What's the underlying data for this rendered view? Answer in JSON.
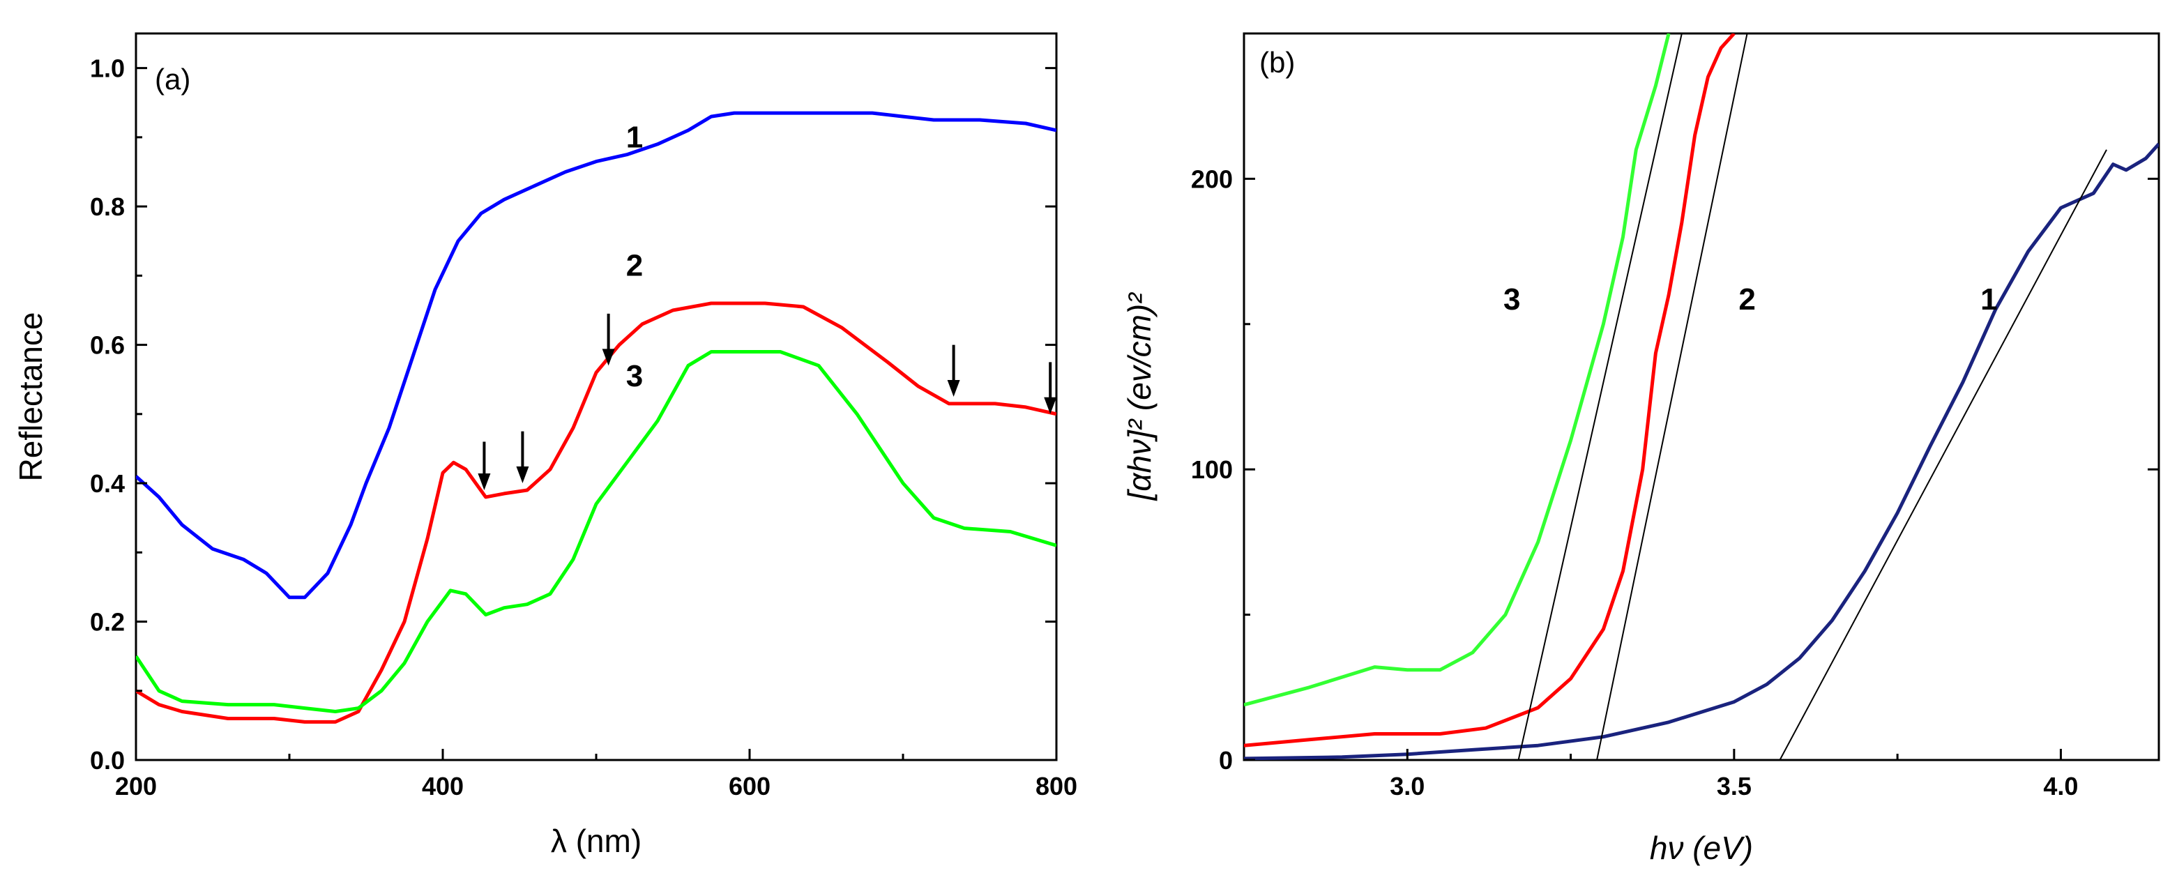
{
  "chart_data": [
    {
      "type": "line",
      "panel_label": "(a)",
      "xlabel": "λ (nm)",
      "ylabel": "Reflectance",
      "xlim": [
        200,
        800
      ],
      "ylim": [
        0,
        1.05
      ],
      "x_ticks": [
        200,
        400,
        600,
        800
      ],
      "x_tick_labels": [
        "200",
        "400",
        "600",
        "800"
      ],
      "y_ticks": [
        0,
        0.2,
        0.4,
        0.6,
        0.8,
        1.0
      ],
      "y_tick_labels": [
        "0.0",
        "0.2",
        "0.4",
        "0.6",
        "0.8",
        "1.0"
      ],
      "grid": false,
      "series": [
        {
          "name": "1",
          "color": "#0000ff",
          "points": [
            [
              200,
              0.41
            ],
            [
              215,
              0.38
            ],
            [
              230,
              0.34
            ],
            [
              250,
              0.305
            ],
            [
              270,
              0.29
            ],
            [
              285,
              0.27
            ],
            [
              300,
              0.235
            ],
            [
              310,
              0.235
            ],
            [
              325,
              0.27
            ],
            [
              340,
              0.34
            ],
            [
              350,
              0.4
            ],
            [
              365,
              0.48
            ],
            [
              380,
              0.58
            ],
            [
              395,
              0.68
            ],
            [
              410,
              0.75
            ],
            [
              425,
              0.79
            ],
            [
              440,
              0.81
            ],
            [
              460,
              0.83
            ],
            [
              480,
              0.85
            ],
            [
              500,
              0.865
            ],
            [
              520,
              0.875
            ],
            [
              540,
              0.89
            ],
            [
              560,
              0.91
            ],
            [
              575,
              0.93
            ],
            [
              590,
              0.935
            ],
            [
              620,
              0.935
            ],
            [
              650,
              0.935
            ],
            [
              680,
              0.935
            ],
            [
              700,
              0.93
            ],
            [
              720,
              0.925
            ],
            [
              750,
              0.925
            ],
            [
              780,
              0.92
            ],
            [
              800,
              0.91
            ]
          ],
          "label_at": [
            525,
            0.885
          ]
        },
        {
          "name": "2",
          "color": "#ff0000",
          "points": [
            [
              200,
              0.1
            ],
            [
              215,
              0.08
            ],
            [
              230,
              0.07
            ],
            [
              260,
              0.06
            ],
            [
              290,
              0.06
            ],
            [
              310,
              0.055
            ],
            [
              330,
              0.055
            ],
            [
              345,
              0.07
            ],
            [
              360,
              0.13
            ],
            [
              375,
              0.2
            ],
            [
              390,
              0.32
            ],
            [
              400,
              0.415
            ],
            [
              407,
              0.43
            ],
            [
              415,
              0.42
            ],
            [
              428,
              0.38
            ],
            [
              440,
              0.385
            ],
            [
              455,
              0.39
            ],
            [
              470,
              0.42
            ],
            [
              485,
              0.48
            ],
            [
              500,
              0.56
            ],
            [
              515,
              0.6
            ],
            [
              530,
              0.63
            ],
            [
              550,
              0.65
            ],
            [
              575,
              0.66
            ],
            [
              610,
              0.66
            ],
            [
              635,
              0.655
            ],
            [
              660,
              0.625
            ],
            [
              690,
              0.575
            ],
            [
              710,
              0.54
            ],
            [
              730,
              0.515
            ],
            [
              760,
              0.515
            ],
            [
              780,
              0.51
            ],
            [
              800,
              0.5
            ]
          ],
          "label_at": [
            525,
            0.7
          ]
        },
        {
          "name": "3",
          "color": "#00ff00",
          "points": [
            [
              200,
              0.15
            ],
            [
              215,
              0.1
            ],
            [
              230,
              0.085
            ],
            [
              260,
              0.08
            ],
            [
              290,
              0.08
            ],
            [
              310,
              0.075
            ],
            [
              330,
              0.07
            ],
            [
              345,
              0.075
            ],
            [
              360,
              0.1
            ],
            [
              375,
              0.14
            ],
            [
              390,
              0.2
            ],
            [
              405,
              0.245
            ],
            [
              415,
              0.24
            ],
            [
              428,
              0.21
            ],
            [
              440,
              0.22
            ],
            [
              455,
              0.225
            ],
            [
              470,
              0.24
            ],
            [
              485,
              0.29
            ],
            [
              500,
              0.37
            ],
            [
              520,
              0.43
            ],
            [
              540,
              0.49
            ],
            [
              560,
              0.57
            ],
            [
              575,
              0.59
            ],
            [
              620,
              0.59
            ],
            [
              645,
              0.57
            ],
            [
              670,
              0.5
            ],
            [
              700,
              0.4
            ],
            [
              720,
              0.35
            ],
            [
              740,
              0.335
            ],
            [
              770,
              0.33
            ],
            [
              800,
              0.31
            ]
          ],
          "label_at": [
            525,
            0.54
          ]
        }
      ],
      "annotations": [
        {
          "type": "arrow",
          "x": 427,
          "y_tip": 0.39,
          "y_tail": 0.46
        },
        {
          "type": "arrow",
          "x": 452,
          "y_tip": 0.4,
          "y_tail": 0.475
        },
        {
          "type": "arrow",
          "x": 508,
          "y_tip": 0.57,
          "y_tail": 0.645
        },
        {
          "type": "arrow",
          "x": 733,
          "y_tip": 0.525,
          "y_tail": 0.6
        },
        {
          "type": "arrow",
          "x": 796,
          "y_tip": 0.5,
          "y_tail": 0.575
        }
      ]
    },
    {
      "type": "line",
      "panel_label": "(b)",
      "xlabel": "hν (eV)",
      "ylabel": "[αhν]² (ev/cm)²",
      "xlim": [
        2.75,
        4.15
      ],
      "ylim": [
        0,
        250
      ],
      "x_ticks": [
        3.0,
        3.5,
        4.0
      ],
      "x_tick_labels": [
        "3.0",
        "3.5",
        "4.0"
      ],
      "y_ticks": [
        0,
        100,
        200
      ],
      "y_tick_labels": [
        "0",
        "100",
        "200"
      ],
      "grid": false,
      "series": [
        {
          "name": "1",
          "color": "#1a237e",
          "points": [
            [
              2.75,
              0.5
            ],
            [
              2.9,
              1
            ],
            [
              3.0,
              2
            ],
            [
              3.1,
              3.5
            ],
            [
              3.2,
              5
            ],
            [
              3.3,
              8
            ],
            [
              3.4,
              13
            ],
            [
              3.5,
              20
            ],
            [
              3.55,
              26
            ],
            [
              3.6,
              35
            ],
            [
              3.65,
              48
            ],
            [
              3.7,
              65
            ],
            [
              3.75,
              85
            ],
            [
              3.8,
              108
            ],
            [
              3.85,
              130
            ],
            [
              3.9,
              155
            ],
            [
              3.95,
              175
            ],
            [
              4.0,
              190
            ],
            [
              4.05,
              195
            ],
            [
              4.08,
              205
            ],
            [
              4.1,
              203
            ],
            [
              4.13,
              207
            ],
            [
              4.15,
              212
            ]
          ],
          "label_at": [
            3.89,
            155
          ],
          "tangent": [
            [
              3.57,
              0
            ],
            [
              4.07,
              210
            ]
          ]
        },
        {
          "name": "2",
          "color": "#ff0000",
          "points": [
            [
              2.75,
              5
            ],
            [
              2.85,
              7
            ],
            [
              2.95,
              9
            ],
            [
              3.05,
              9
            ],
            [
              3.12,
              11
            ],
            [
              3.2,
              18
            ],
            [
              3.25,
              28
            ],
            [
              3.3,
              45
            ],
            [
              3.33,
              65
            ],
            [
              3.36,
              100
            ],
            [
              3.38,
              140
            ],
            [
              3.4,
              160
            ],
            [
              3.42,
              185
            ],
            [
              3.44,
              215
            ],
            [
              3.46,
              235
            ],
            [
              3.48,
              245
            ],
            [
              3.5,
              250
            ]
          ],
          "label_at": [
            3.52,
            155
          ],
          "tangent": [
            [
              3.29,
              0
            ],
            [
              3.52,
              250
            ]
          ]
        },
        {
          "name": "3",
          "color": "#33ff33",
          "points": [
            [
              2.75,
              19
            ],
            [
              2.85,
              25
            ],
            [
              2.95,
              32
            ],
            [
              3.0,
              31
            ],
            [
              3.05,
              31
            ],
            [
              3.1,
              37
            ],
            [
              3.15,
              50
            ],
            [
              3.2,
              75
            ],
            [
              3.25,
              110
            ],
            [
              3.3,
              150
            ],
            [
              3.33,
              180
            ],
            [
              3.35,
              210
            ],
            [
              3.38,
              232
            ],
            [
              3.4,
              250
            ]
          ],
          "label_at": [
            3.16,
            155
          ],
          "tangent": [
            [
              3.17,
              0
            ],
            [
              3.42,
              250
            ]
          ]
        }
      ]
    }
  ]
}
